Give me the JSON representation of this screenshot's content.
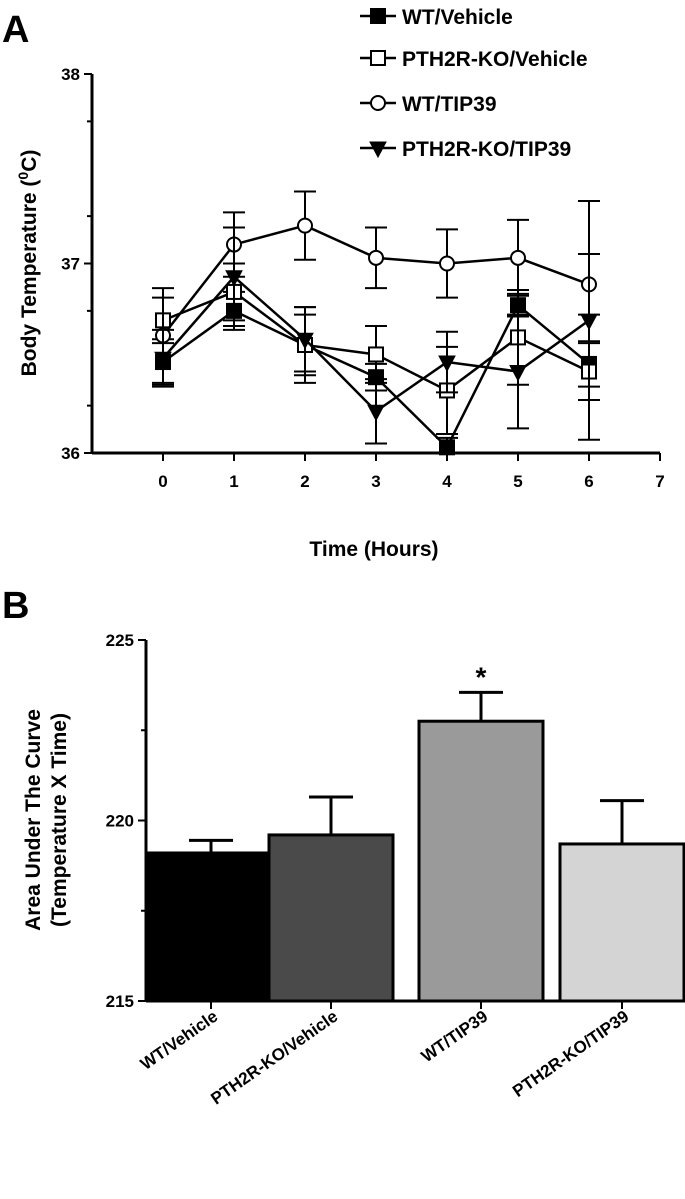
{
  "panels": {
    "a_letter": "A",
    "b_letter": "B"
  },
  "chart_data": [
    {
      "type": "line",
      "xlabel": "Time (Hours)",
      "ylabel": "Body Temperature (",
      "ylabel_sup": "0",
      "ylabel_end": "C)",
      "xlim": [
        -1,
        7
      ],
      "ylim": [
        36,
        38
      ],
      "x_ticks": [
        "0",
        "1",
        "2",
        "3",
        "4",
        "5",
        "6",
        "7"
      ],
      "y_ticks": [
        "36",
        "37",
        "38"
      ],
      "legend_position": "top-right",
      "x": [
        0,
        1,
        2,
        3,
        4,
        5,
        6
      ],
      "series": [
        {
          "name": "WT/Vehicle",
          "marker": "filled-square",
          "values": [
            36.48,
            36.75,
            36.57,
            36.4,
            36.03,
            36.78,
            36.47
          ],
          "errors": [
            0.12,
            0.1,
            0.16,
            0.07,
            0.05,
            0.06,
            0.12
          ]
        },
        {
          "name": "PTH2R-KO/Vehicle",
          "marker": "open-square",
          "values": [
            36.7,
            36.85,
            36.57,
            36.52,
            36.33,
            36.61,
            36.43
          ],
          "errors": [
            0.12,
            0.15,
            0.2,
            0.15,
            0.23,
            0.25,
            0.15
          ]
        },
        {
          "name": "WT/TIP39",
          "marker": "open-circle",
          "values": [
            36.62,
            37.1,
            37.2,
            37.03,
            37.0,
            37.03,
            36.89
          ],
          "errors": [
            0.25,
            0.17,
            0.18,
            0.16,
            0.18,
            0.2,
            0.16
          ]
        },
        {
          "name": "PTH2R-KO/TIP39",
          "marker": "filled-triangle-down",
          "values": [
            36.5,
            36.93,
            36.6,
            36.22,
            36.48,
            36.43,
            36.7
          ],
          "errors": [
            0.15,
            0.26,
            0.17,
            0.17,
            0.16,
            0.3,
            0.63
          ]
        }
      ]
    },
    {
      "type": "bar",
      "ylabel_line1": "Area Under The Curve",
      "ylabel_line2": "(Temperature X Time)",
      "ylim": [
        215,
        225
      ],
      "y_ticks": [
        "215",
        "220",
        "225"
      ],
      "categories": [
        "WT/Vehicle",
        "PTH2R-KO/Vehicle",
        "WT/TIP39",
        "PTH2R-KO/TIP39"
      ],
      "values": [
        219.1,
        219.6,
        222.75,
        219.35
      ],
      "errors": [
        0.35,
        1.05,
        0.8,
        1.2
      ],
      "colors": [
        "#000000",
        "#4a4a4a",
        "#9a9a9a",
        "#d4d4d4"
      ],
      "annotations": [
        {
          "category": "WT/TIP39",
          "text": "*"
        }
      ]
    }
  ]
}
